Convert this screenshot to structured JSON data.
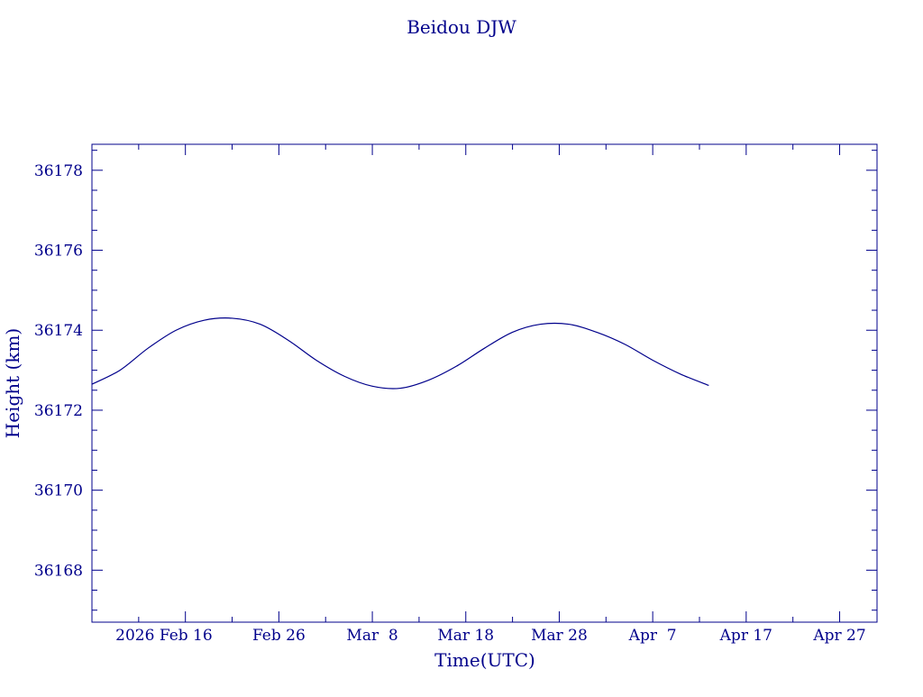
{
  "chart_data": {
    "type": "line",
    "title": "Beidou DJW",
    "xlabel": "Time(UTC)",
    "ylabel": "Height (km)",
    "color": "#00008b",
    "background": "#ffffff",
    "xlim": [
      "2026-02-06",
      "2026-05-01"
    ],
    "ylim": [
      36166.7,
      36178.65
    ],
    "y_ticks": [
      36168,
      36170,
      36172,
      36174,
      36176,
      36178
    ],
    "y_tick_labels": [
      "36168",
      "36170",
      "36172",
      "36174",
      "36176",
      "36178"
    ],
    "x_ticks": [
      "2026-02-16",
      "2026-02-26",
      "2026-03-08",
      "2026-03-18",
      "2026-03-28",
      "2026-04-07",
      "2026-04-17",
      "2026-04-27"
    ],
    "x_tick_labels": [
      "2026 Feb 16",
      "Feb 26",
      "Mar  8",
      "Mar 18",
      "Mar 28",
      "Apr  7",
      "Apr 17",
      "Apr 27"
    ],
    "grid": false,
    "series": [
      {
        "x": [
          "2026-02-06",
          "2026-02-09",
          "2026-02-12",
          "2026-02-15",
          "2026-02-18",
          "2026-02-21",
          "2026-02-24",
          "2026-02-27",
          "2026-03-02",
          "2026-03-05",
          "2026-03-08",
          "2026-03-11",
          "2026-03-14",
          "2026-03-17",
          "2026-03-20",
          "2026-03-23",
          "2026-03-26",
          "2026-03-29",
          "2026-04-01",
          "2026-04-04",
          "2026-04-07",
          "2026-04-10",
          "2026-04-13"
        ],
        "y": [
          36172.65,
          36173.0,
          36173.55,
          36174.0,
          36174.25,
          36174.3,
          36174.15,
          36173.75,
          36173.25,
          36172.85,
          36172.6,
          36172.55,
          36172.75,
          36173.1,
          36173.55,
          36173.95,
          36174.15,
          36174.15,
          36173.95,
          36173.65,
          36173.25,
          36172.9,
          36172.62
        ]
      }
    ]
  }
}
